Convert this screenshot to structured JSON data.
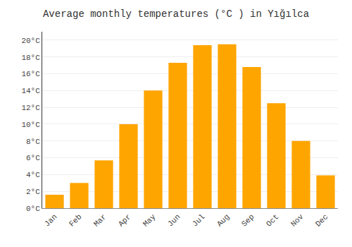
{
  "chart_data": {
    "type": "bar",
    "title": "Average monthly temperatures (°C ) in Yığılca",
    "categories": [
      "Jan",
      "Feb",
      "Mar",
      "Apr",
      "May",
      "Jun",
      "Jul",
      "Aug",
      "Sep",
      "Oct",
      "Nov",
      "Dec"
    ],
    "values": [
      1.6,
      3.0,
      5.7,
      10.0,
      14.0,
      17.3,
      19.4,
      19.5,
      16.8,
      12.5,
      8.0,
      3.9
    ],
    "color": "#FFA500",
    "ylim": [
      0,
      21
    ],
    "yticks": [
      {
        "value": 0,
        "label": "0°C"
      },
      {
        "value": 2,
        "label": "2°C"
      },
      {
        "value": 4,
        "label": "4°C"
      },
      {
        "value": 6,
        "label": "6°C"
      },
      {
        "value": 8,
        "label": "8°C"
      },
      {
        "value": 10,
        "label": "10°C"
      },
      {
        "value": 12,
        "label": "12°C"
      },
      {
        "value": 14,
        "label": "14°C"
      },
      {
        "value": 16,
        "label": "16°C"
      },
      {
        "value": 18,
        "label": "18°C"
      },
      {
        "value": 20,
        "label": "20°C"
      }
    ],
    "grid": true
  }
}
